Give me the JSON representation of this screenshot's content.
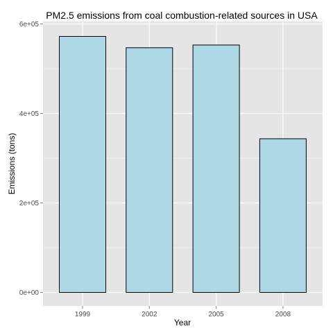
{
  "chart_data": {
    "type": "bar",
    "title": "PM2.5 emissions from coal combustion-related sources in USA",
    "xlabel": "Year",
    "ylabel": "Emissions (tons)",
    "categories": [
      "1999",
      "2002",
      "2005",
      "2008"
    ],
    "values": [
      572126,
      546789,
      552881,
      343432
    ],
    "ylim": [
      0,
      600000
    ],
    "yticks": [
      0,
      200000,
      400000,
      600000
    ],
    "ytick_labels": [
      "0e+00",
      "2e+05",
      "4e+05",
      "6e+05"
    ],
    "grid": true,
    "legend": "none",
    "colors": {
      "bar_fill": "#add8e6",
      "bar_stroke": "#000000",
      "panel_background": "#e5e5e5",
      "grid_line": "#ffffff"
    }
  }
}
